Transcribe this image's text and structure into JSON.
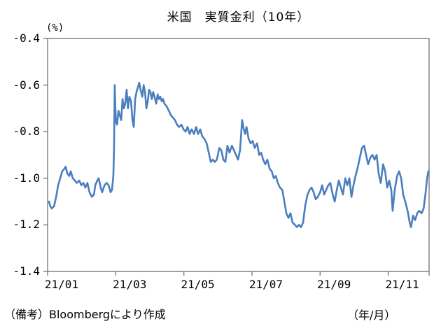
{
  "chart_data": {
    "type": "line",
    "title": "米国　実質金利（10年）",
    "y_unit": "(%)",
    "x_unit": "（年/月）",
    "source_note": "（備考）Bloombergにより作成",
    "grid": false,
    "legend": "none",
    "line_color": "#4a7ebf",
    "frame_color": "#848484",
    "y_axis": {
      "min": -1.4,
      "max": -0.4,
      "tick_interval": 0.2,
      "tick_labels": [
        "-0.4",
        "-0.6",
        "-0.8",
        "-1.0",
        "-1.2",
        "-1.4"
      ]
    },
    "x_axis": {
      "tick_labels": [
        "21/01",
        "21/03",
        "21/05",
        "21/07",
        "21/09",
        "21/11"
      ],
      "label_positions_months": [
        0.41,
        2.41,
        4.41,
        6.41,
        8.41,
        10.41
      ],
      "boundary_tick_months": [
        0,
        2,
        4,
        6,
        8,
        10,
        11.2
      ],
      "months_domain": [
        0,
        11.2
      ]
    },
    "series": [
      {
        "name": "米国実質金利（10年）",
        "points_month_value": [
          [
            0.04,
            -1.1
          ],
          [
            0.08,
            -1.12
          ],
          [
            0.12,
            -1.13
          ],
          [
            0.19,
            -1.12
          ],
          [
            0.25,
            -1.08
          ],
          [
            0.31,
            -1.03
          ],
          [
            0.37,
            -1.0
          ],
          [
            0.43,
            -0.97
          ],
          [
            0.49,
            -0.96
          ],
          [
            0.53,
            -0.95
          ],
          [
            0.58,
            -0.98
          ],
          [
            0.64,
            -0.99
          ],
          [
            0.68,
            -0.97
          ],
          [
            0.74,
            -1.0
          ],
          [
            0.8,
            -1.01
          ],
          [
            0.86,
            -1.02
          ],
          [
            0.93,
            -1.01
          ],
          [
            0.99,
            -1.03
          ],
          [
            1.05,
            -1.02
          ],
          [
            1.11,
            -1.04
          ],
          [
            1.17,
            -1.02
          ],
          [
            1.23,
            -1.06
          ],
          [
            1.3,
            -1.08
          ],
          [
            1.36,
            -1.07
          ],
          [
            1.4,
            -1.03
          ],
          [
            1.46,
            -1.01
          ],
          [
            1.5,
            -1.0
          ],
          [
            1.56,
            -1.04
          ],
          [
            1.6,
            -1.06
          ],
          [
            1.67,
            -1.03
          ],
          [
            1.73,
            -1.02
          ],
          [
            1.79,
            -1.03
          ],
          [
            1.85,
            -1.06
          ],
          [
            1.89,
            -1.05
          ],
          [
            1.93,
            -0.99
          ],
          [
            1.95,
            -0.88
          ],
          [
            1.97,
            -0.6
          ],
          [
            1.99,
            -0.7
          ],
          [
            2.01,
            -0.76
          ],
          [
            2.04,
            -0.77
          ],
          [
            2.08,
            -0.71
          ],
          [
            2.12,
            -0.73
          ],
          [
            2.16,
            -0.75
          ],
          [
            2.2,
            -0.66
          ],
          [
            2.24,
            -0.7
          ],
          [
            2.28,
            -0.68
          ],
          [
            2.32,
            -0.62
          ],
          [
            2.36,
            -0.7
          ],
          [
            2.4,
            -0.65
          ],
          [
            2.45,
            -0.67
          ],
          [
            2.49,
            -0.75
          ],
          [
            2.53,
            -0.78
          ],
          [
            2.57,
            -0.66
          ],
          [
            2.61,
            -0.63
          ],
          [
            2.65,
            -0.61
          ],
          [
            2.69,
            -0.59
          ],
          [
            2.73,
            -0.62
          ],
          [
            2.78,
            -0.65
          ],
          [
            2.82,
            -0.6
          ],
          [
            2.86,
            -0.63
          ],
          [
            2.9,
            -0.7
          ],
          [
            2.94,
            -0.67
          ],
          [
            2.98,
            -0.62
          ],
          [
            3.02,
            -0.63
          ],
          [
            3.06,
            -0.66
          ],
          [
            3.1,
            -0.63
          ],
          [
            3.14,
            -0.65
          ],
          [
            3.19,
            -0.68
          ],
          [
            3.23,
            -0.64
          ],
          [
            3.27,
            -0.66
          ],
          [
            3.31,
            -0.65
          ],
          [
            3.35,
            -0.67
          ],
          [
            3.39,
            -0.66
          ],
          [
            3.43,
            -0.68
          ],
          [
            3.49,
            -0.69
          ],
          [
            3.56,
            -0.71
          ],
          [
            3.62,
            -0.73
          ],
          [
            3.68,
            -0.74
          ],
          [
            3.74,
            -0.75
          ],
          [
            3.8,
            -0.77
          ],
          [
            3.86,
            -0.78
          ],
          [
            3.93,
            -0.77
          ],
          [
            3.99,
            -0.79
          ],
          [
            4.05,
            -0.8
          ],
          [
            4.11,
            -0.78
          ],
          [
            4.17,
            -0.81
          ],
          [
            4.23,
            -0.79
          ],
          [
            4.3,
            -0.81
          ],
          [
            4.36,
            -0.78
          ],
          [
            4.42,
            -0.81
          ],
          [
            4.48,
            -0.79
          ],
          [
            4.54,
            -0.82
          ],
          [
            4.6,
            -0.83
          ],
          [
            4.67,
            -0.85
          ],
          [
            4.73,
            -0.89
          ],
          [
            4.79,
            -0.93
          ],
          [
            4.85,
            -0.92
          ],
          [
            4.91,
            -0.93
          ],
          [
            4.97,
            -0.92
          ],
          [
            5.04,
            -0.87
          ],
          [
            5.1,
            -0.88
          ],
          [
            5.16,
            -0.92
          ],
          [
            5.22,
            -0.93
          ],
          [
            5.28,
            -0.86
          ],
          [
            5.34,
            -0.89
          ],
          [
            5.41,
            -0.86
          ],
          [
            5.47,
            -0.88
          ],
          [
            5.53,
            -0.9
          ],
          [
            5.59,
            -0.92
          ],
          [
            5.65,
            -0.88
          ],
          [
            5.71,
            -0.75
          ],
          [
            5.76,
            -0.79
          ],
          [
            5.8,
            -0.81
          ],
          [
            5.84,
            -0.78
          ],
          [
            5.9,
            -0.83
          ],
          [
            5.96,
            -0.85
          ],
          [
            6.02,
            -0.84
          ],
          [
            6.08,
            -0.87
          ],
          [
            6.15,
            -0.85
          ],
          [
            6.21,
            -0.9
          ],
          [
            6.27,
            -0.89
          ],
          [
            6.33,
            -0.92
          ],
          [
            6.39,
            -0.94
          ],
          [
            6.45,
            -0.92
          ],
          [
            6.52,
            -0.96
          ],
          [
            6.58,
            -0.97
          ],
          [
            6.64,
            -1.0
          ],
          [
            6.7,
            -0.99
          ],
          [
            6.76,
            -1.02
          ],
          [
            6.82,
            -1.04
          ],
          [
            6.89,
            -1.05
          ],
          [
            6.95,
            -1.1
          ],
          [
            7.01,
            -1.15
          ],
          [
            7.07,
            -1.17
          ],
          [
            7.13,
            -1.15
          ],
          [
            7.19,
            -1.19
          ],
          [
            7.26,
            -1.2
          ],
          [
            7.32,
            -1.21
          ],
          [
            7.38,
            -1.2
          ],
          [
            7.44,
            -1.21
          ],
          [
            7.5,
            -1.19
          ],
          [
            7.56,
            -1.12
          ],
          [
            7.63,
            -1.07
          ],
          [
            7.69,
            -1.05
          ],
          [
            7.75,
            -1.04
          ],
          [
            7.81,
            -1.06
          ],
          [
            7.87,
            -1.09
          ],
          [
            7.93,
            -1.08
          ],
          [
            8.0,
            -1.06
          ],
          [
            8.06,
            -1.03
          ],
          [
            8.12,
            -1.07
          ],
          [
            8.18,
            -1.05
          ],
          [
            8.24,
            -1.03
          ],
          [
            8.3,
            -1.02
          ],
          [
            8.37,
            -1.07
          ],
          [
            8.43,
            -1.1
          ],
          [
            8.49,
            -1.05
          ],
          [
            8.55,
            -1.01
          ],
          [
            8.61,
            -1.04
          ],
          [
            8.67,
            -1.07
          ],
          [
            8.74,
            -1.0
          ],
          [
            8.8,
            -1.03
          ],
          [
            8.86,
            -1.0
          ],
          [
            8.92,
            -1.08
          ],
          [
            8.98,
            -1.03
          ],
          [
            9.04,
            -0.99
          ],
          [
            9.11,
            -0.95
          ],
          [
            9.17,
            -0.91
          ],
          [
            9.23,
            -0.87
          ],
          [
            9.29,
            -0.86
          ],
          [
            9.35,
            -0.9
          ],
          [
            9.41,
            -0.94
          ],
          [
            9.48,
            -0.91
          ],
          [
            9.54,
            -0.9
          ],
          [
            9.6,
            -0.92
          ],
          [
            9.66,
            -0.9
          ],
          [
            9.72,
            -0.98
          ],
          [
            9.78,
            -1.02
          ],
          [
            9.85,
            -0.94
          ],
          [
            9.91,
            -0.97
          ],
          [
            9.97,
            -1.04
          ],
          [
            10.03,
            -1.01
          ],
          [
            10.09,
            -1.05
          ],
          [
            10.13,
            -1.14
          ],
          [
            10.19,
            -1.05
          ],
          [
            10.26,
            -0.99
          ],
          [
            10.32,
            -0.97
          ],
          [
            10.38,
            -1.0
          ],
          [
            10.44,
            -1.07
          ],
          [
            10.5,
            -1.1
          ],
          [
            10.57,
            -1.14
          ],
          [
            10.63,
            -1.19
          ],
          [
            10.67,
            -1.21
          ],
          [
            10.73,
            -1.16
          ],
          [
            10.79,
            -1.18
          ],
          [
            10.85,
            -1.15
          ],
          [
            10.91,
            -1.14
          ],
          [
            10.98,
            -1.15
          ],
          [
            11.04,
            -1.13
          ],
          [
            11.1,
            -1.06
          ],
          [
            11.14,
            -1.0
          ],
          [
            11.18,
            -0.97
          ]
        ]
      }
    ]
  }
}
